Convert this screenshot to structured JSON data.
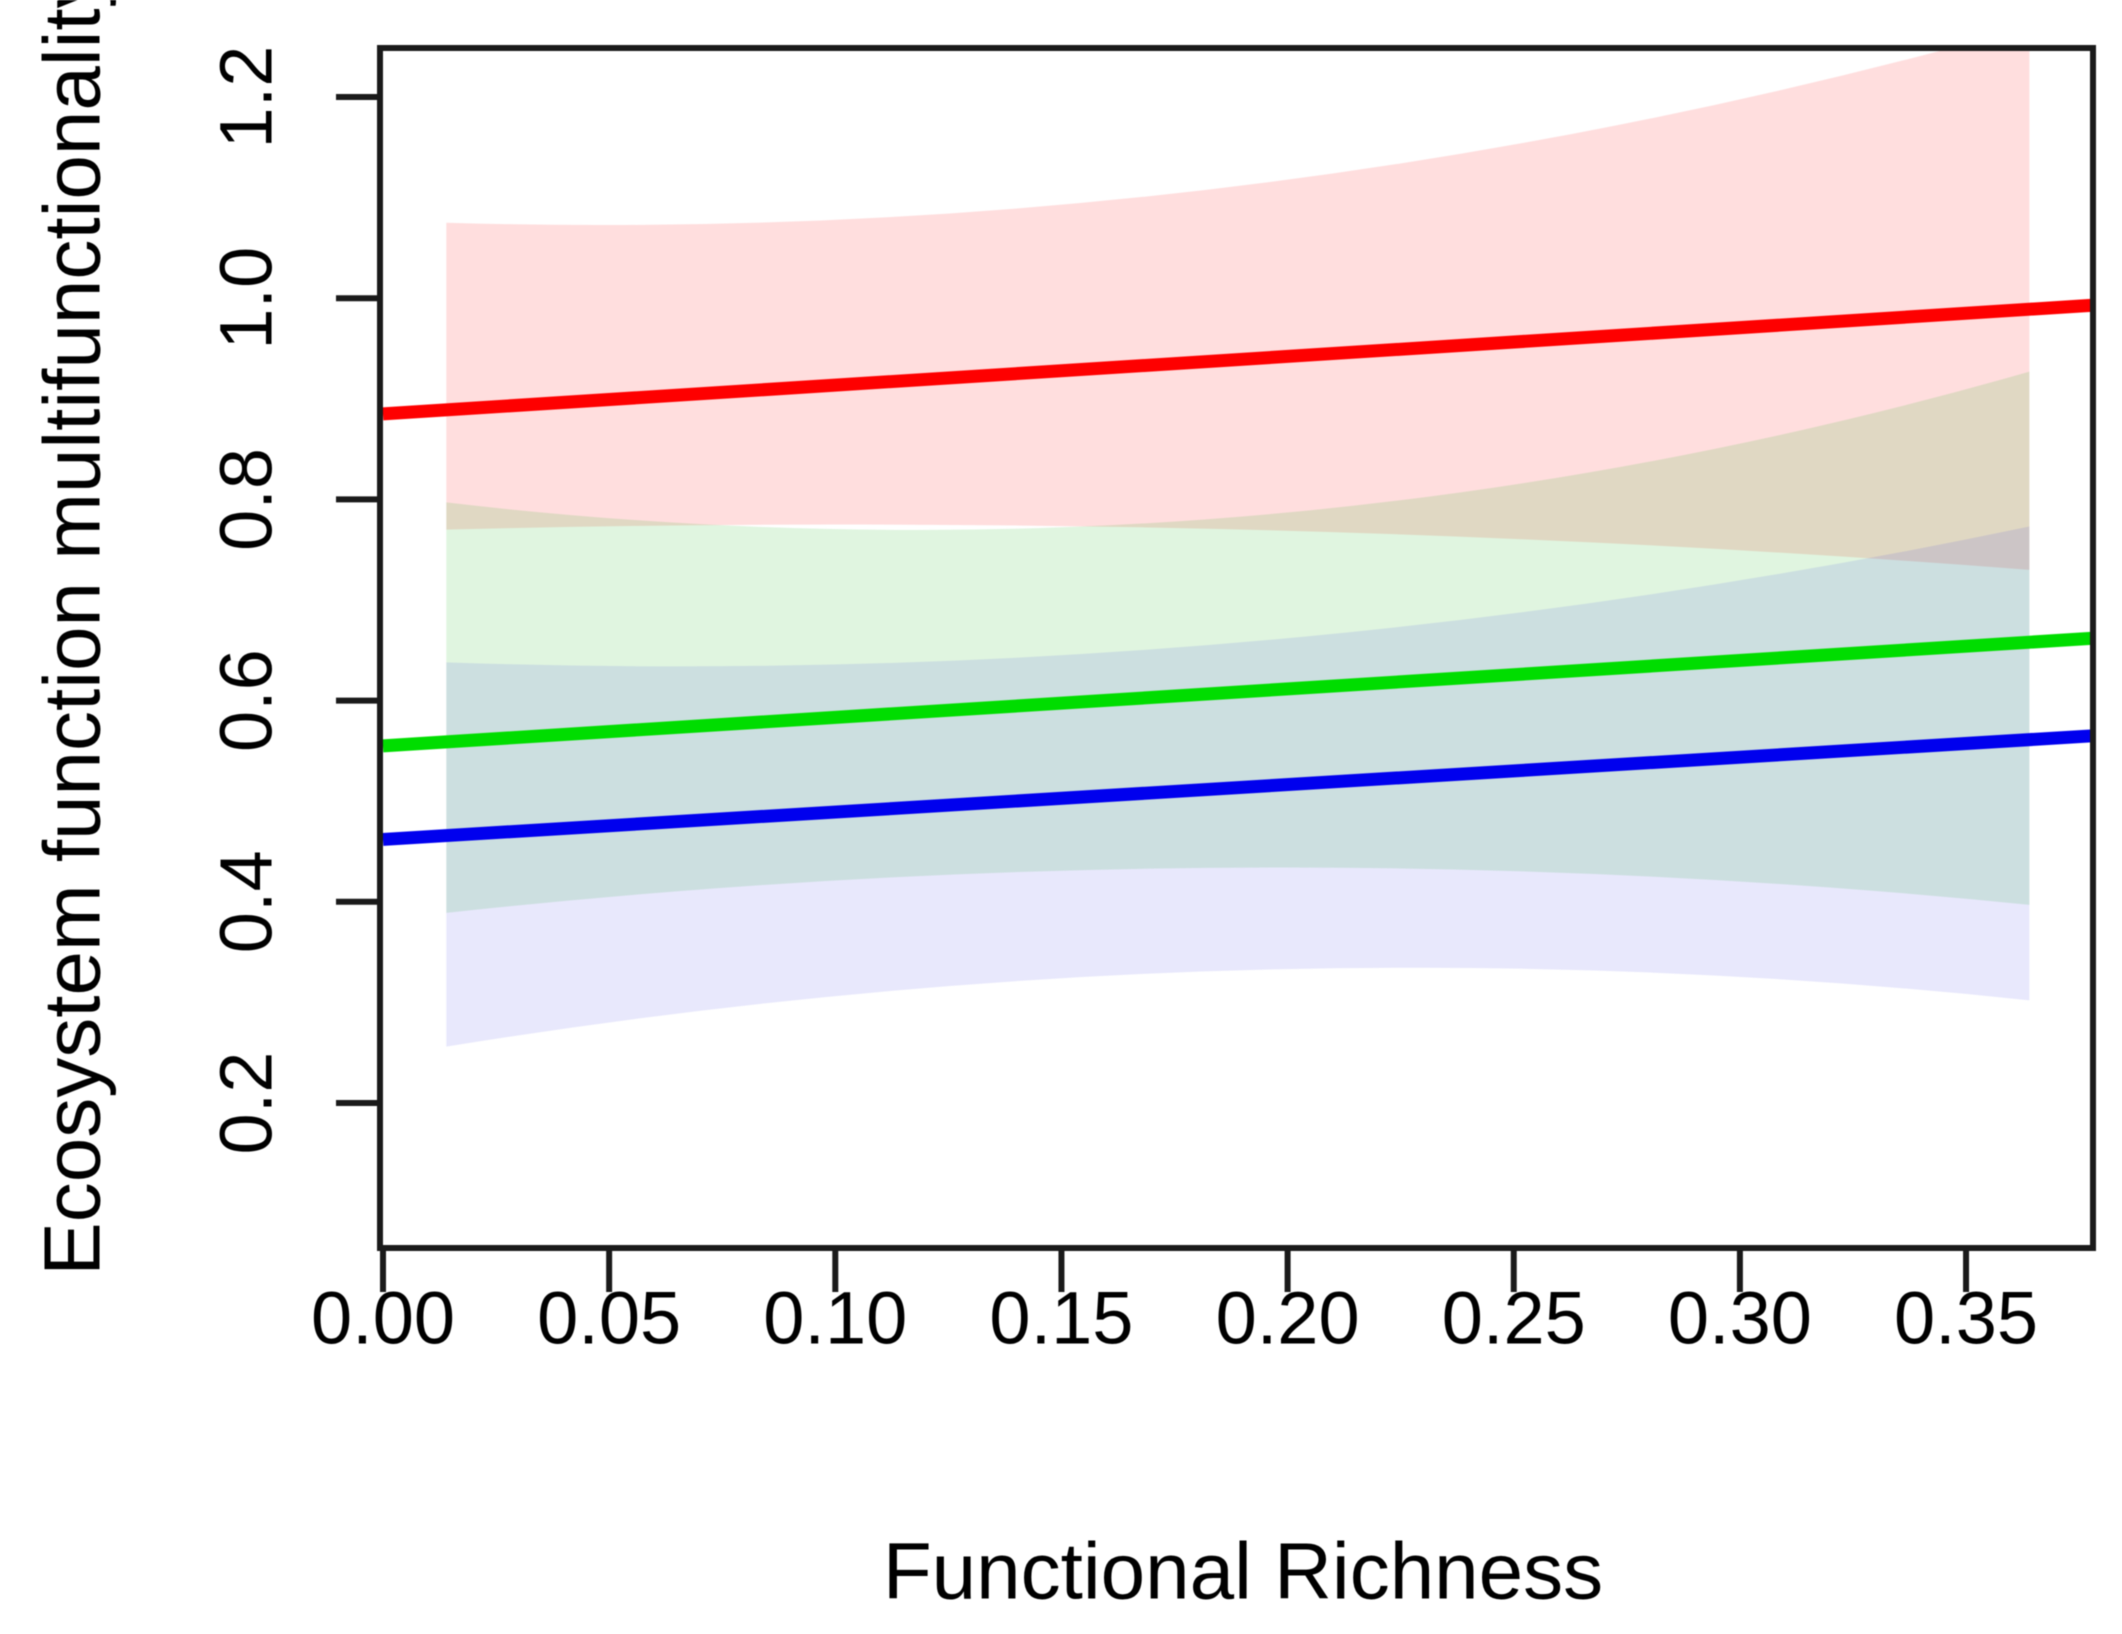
{
  "figure": {
    "background": "#ffffff",
    "axis_color": "#1a1a1a",
    "text_color": "#000000"
  },
  "chart_data": {
    "type": "line",
    "title": "",
    "xlabel": "Functional Richness",
    "ylabel": "Ecosystem function multifunctionality",
    "xlim": [
      0,
      0.378
    ],
    "ylim": [
      0.056,
      1.249
    ],
    "grid": false,
    "legend": "none",
    "x_ticks": {
      "values": [
        0.0,
        0.05,
        0.1,
        0.15,
        0.2,
        0.25,
        0.3,
        0.35
      ],
      "labels": [
        "0.00",
        "0.05",
        "0.10",
        "0.15",
        "0.20",
        "0.25",
        "0.30",
        "0.35"
      ]
    },
    "y_ticks": {
      "values": [
        0.2,
        0.4,
        0.6,
        0.8,
        1.0,
        1.2
      ],
      "labels": [
        "0.2",
        "0.4",
        "0.6",
        "0.8",
        "1.0",
        "1.2"
      ]
    },
    "ci_x": [
      0.014,
      0.19,
      0.364
    ],
    "series": [
      {
        "name": "red-line",
        "color": "#FE0000",
        "band_color": "#FF0000",
        "band_opacity": 0.13,
        "x": [
          0,
          0.378
        ],
        "y": [
          0.885,
          0.993
        ],
        "ci_upper": [
          1.075,
          1.112,
          1.27
        ],
        "ci_lower": [
          0.77,
          0.77,
          0.73
        ]
      },
      {
        "name": "green-line",
        "color": "#00DD00",
        "band_color": "#00AA00",
        "band_opacity": 0.12,
        "x": [
          0,
          0.378
        ],
        "y": [
          0.555,
          0.662
        ],
        "ci_upper": [
          0.797,
          0.783,
          0.927
        ],
        "ci_lower": [
          0.389,
          0.434,
          0.397
        ]
      },
      {
        "name": "blue-line",
        "color": "#0000EE",
        "band_color": "#0000DD",
        "band_opacity": 0.09,
        "x": [
          0,
          0.378
        ],
        "y": [
          0.462,
          0.565
        ],
        "ci_upper": [
          0.638,
          0.658,
          0.773
        ],
        "ci_lower": [
          0.256,
          0.332,
          0.302
        ]
      }
    ]
  }
}
